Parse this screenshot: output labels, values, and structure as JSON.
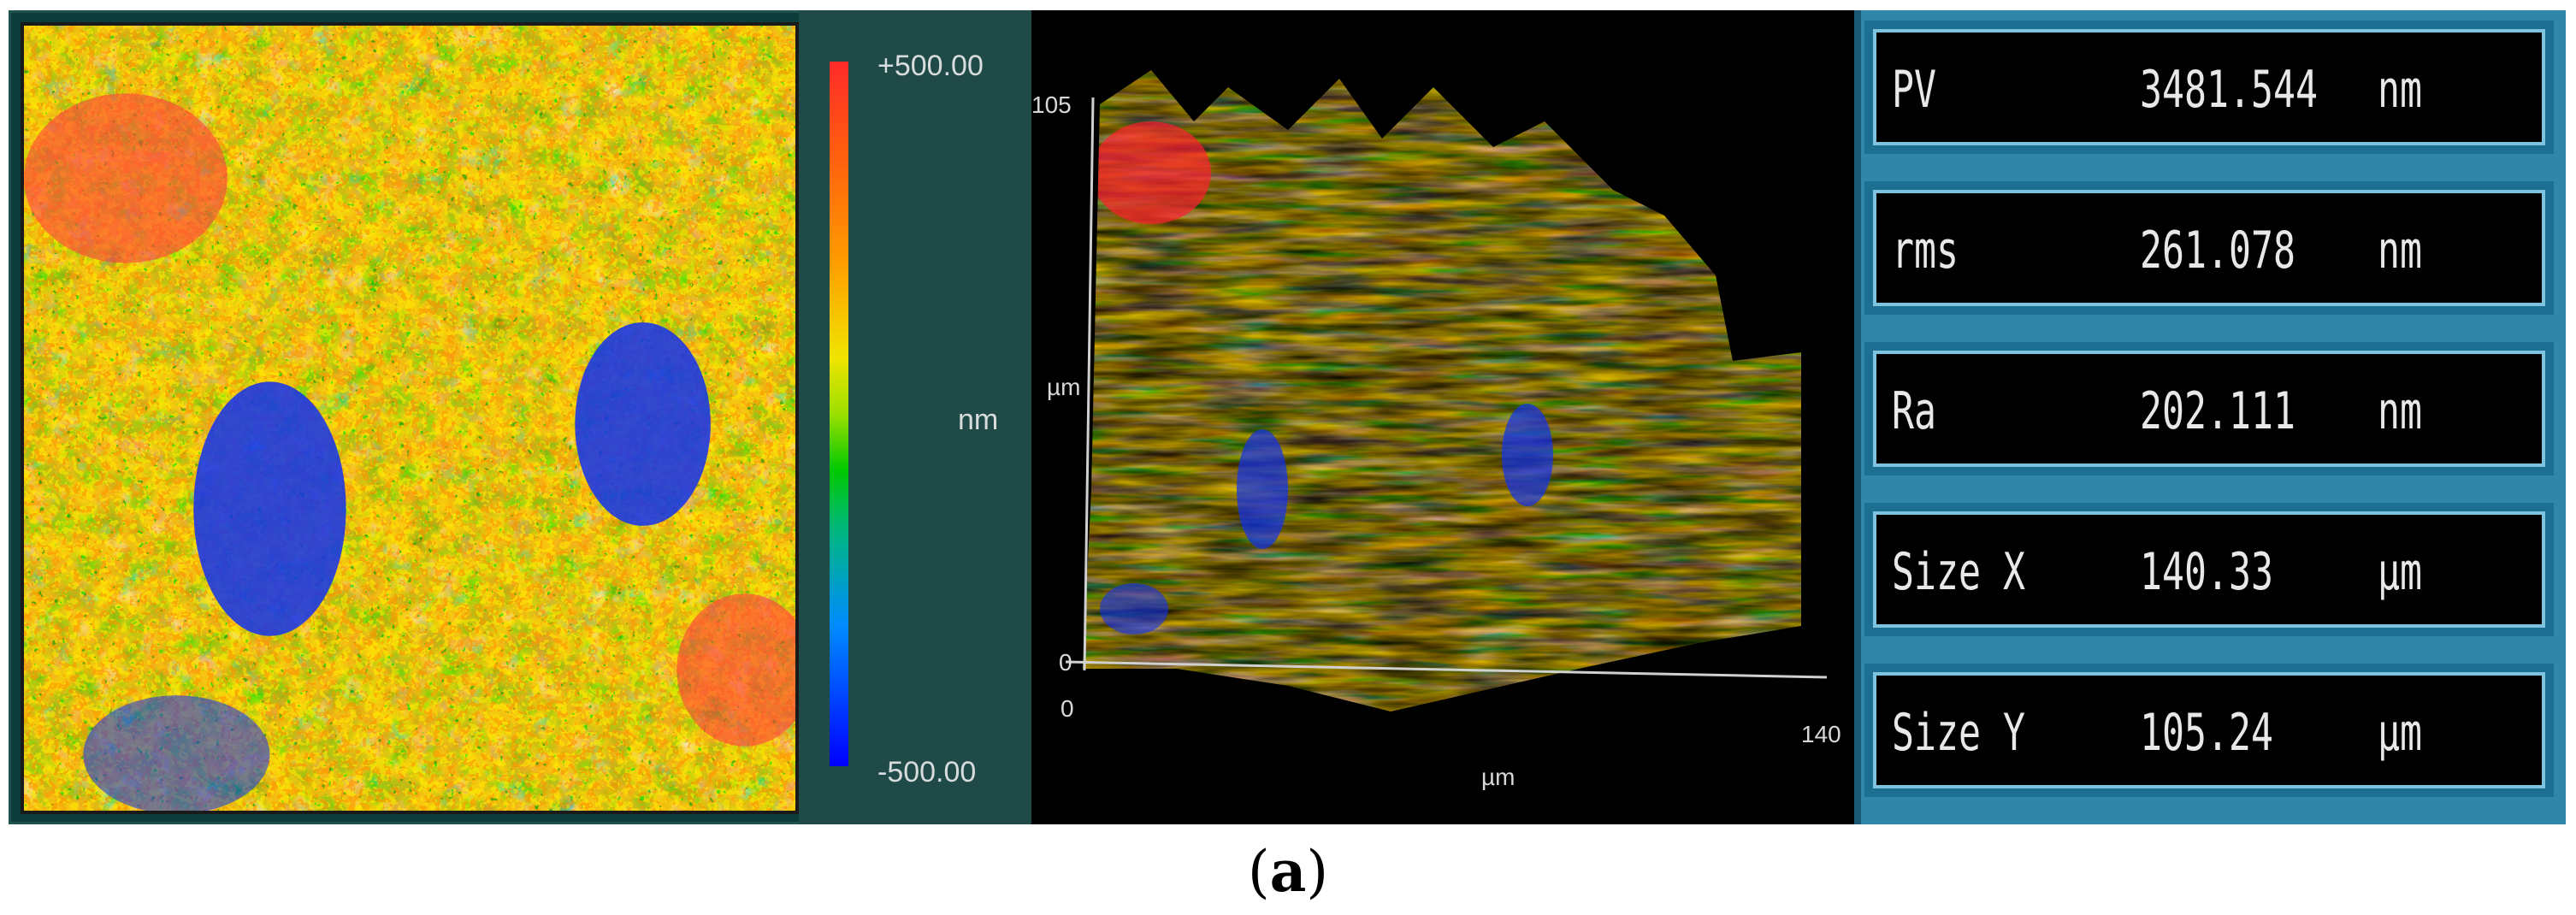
{
  "colorbar": {
    "max_label": "+500.00",
    "min_label": "-500.00",
    "unit": "nm",
    "colors": [
      "#ff2a2a",
      "#ff9a00",
      "#f0e400",
      "#00c800",
      "#008cff",
      "#0000ff"
    ]
  },
  "view3d": {
    "z_top": "105",
    "z_bottom": "0",
    "z_label": "µm",
    "x_start": "0",
    "x_end": "140",
    "x_label": "µm"
  },
  "stats": [
    {
      "name": "PV",
      "value": "3481.544",
      "unit": "nm"
    },
    {
      "name": "rms",
      "value": "261.078",
      "unit": "nm"
    },
    {
      "name": "Ra",
      "value": "202.111",
      "unit": "nm"
    },
    {
      "name": "Size X",
      "value": "140.33",
      "unit": "µm"
    },
    {
      "name": "Size Y",
      "value": "105.24",
      "unit": "µm"
    }
  ],
  "caption": {
    "open": "(",
    "letter": "a",
    "close": ")"
  }
}
